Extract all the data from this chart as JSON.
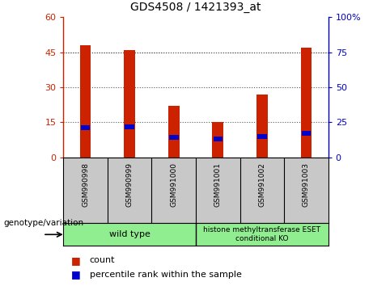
{
  "title": "GDS4508 / 1421393_at",
  "samples": [
    "GSM990998",
    "GSM990999",
    "GSM991000",
    "GSM991001",
    "GSM991002",
    "GSM991003"
  ],
  "counts": [
    48,
    46,
    22,
    15,
    27,
    47
  ],
  "percentiles": [
    21,
    22,
    14,
    13,
    15,
    17
  ],
  "ylim_left": [
    0,
    60
  ],
  "ylim_right": [
    0,
    100
  ],
  "yticks_left": [
    0,
    15,
    30,
    45,
    60
  ],
  "yticks_right": [
    0,
    25,
    50,
    75,
    100
  ],
  "bar_color": "#cc2200",
  "percentile_color": "#0000cc",
  "bar_width": 0.25,
  "group_bg_color": "#90ee90",
  "sample_area_bg": "#c8c8c8",
  "dotted_line_color": "#555555",
  "left_axis_color": "#cc2200",
  "right_axis_color": "#0000cc",
  "legend_count_label": "count",
  "legend_percentile_label": "percentile rank within the sample",
  "genotype_label": "genotype/variation",
  "figsize": [
    4.61,
    3.54
  ],
  "dpi": 100
}
